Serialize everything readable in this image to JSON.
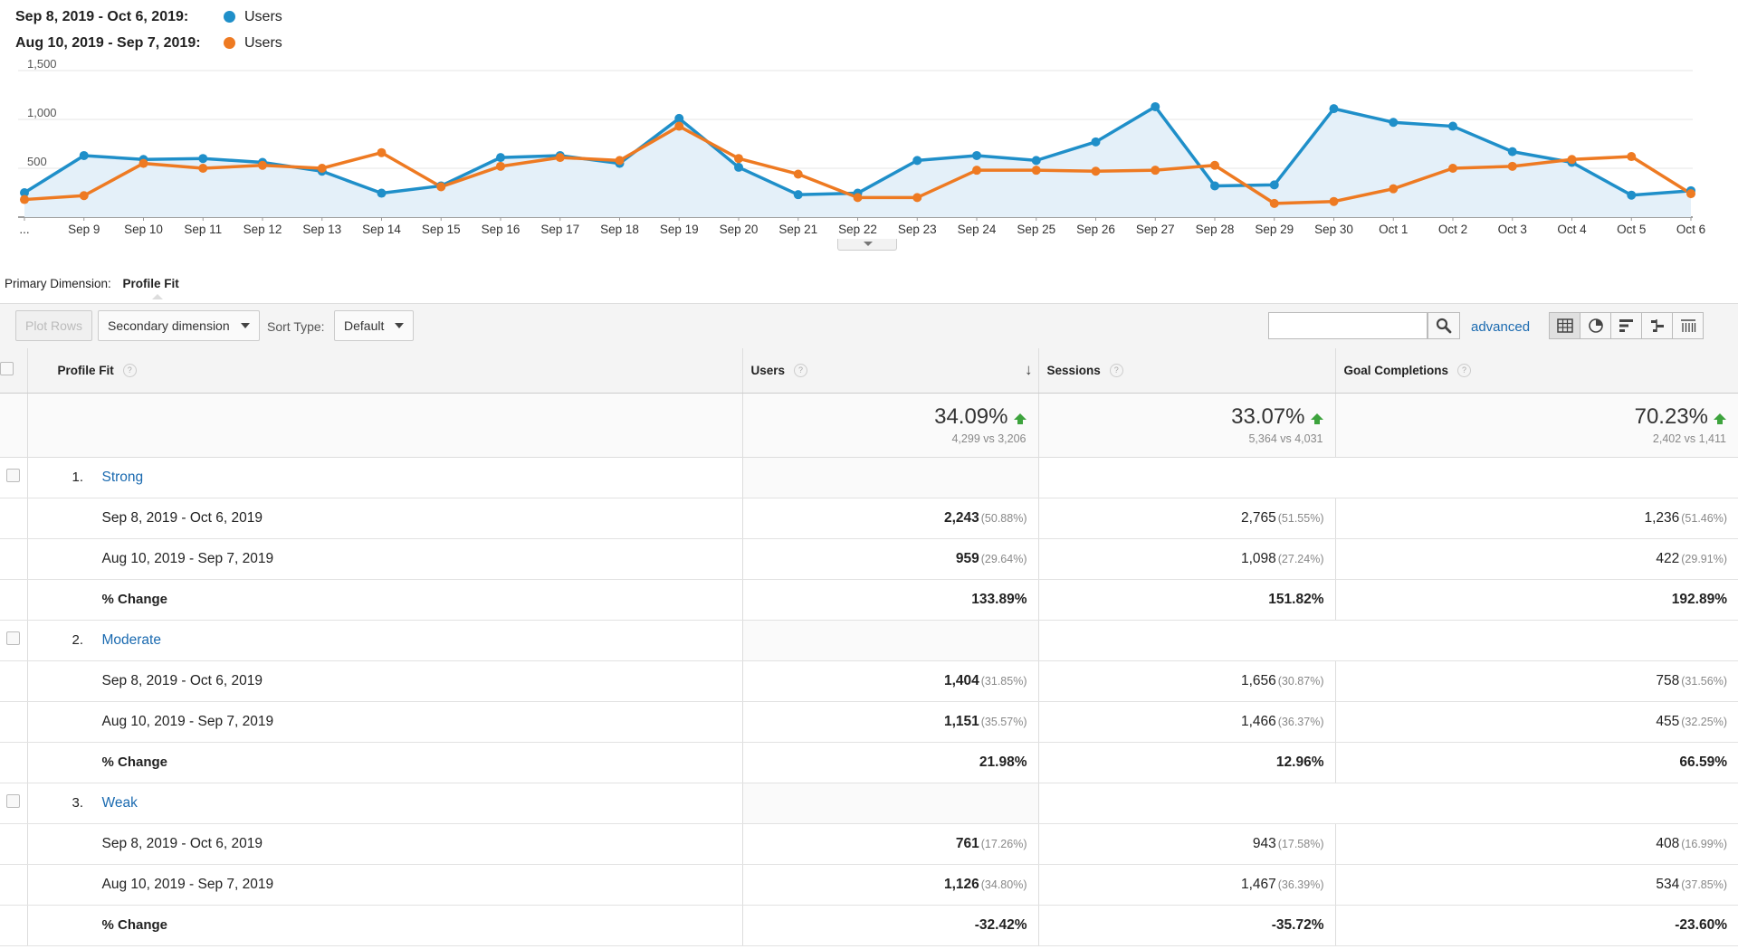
{
  "legend": {
    "rows": [
      {
        "range": "Sep 8, 2019 - Oct 6, 2019:",
        "series": "Users",
        "color": "#1f8fc9"
      },
      {
        "range": "Aug 10, 2019 - Sep 7, 2019:",
        "series": "Users",
        "color": "#ee7a22"
      }
    ]
  },
  "chart_data": {
    "type": "line",
    "x": [
      "...",
      "Sep 9",
      "Sep 10",
      "Sep 11",
      "Sep 12",
      "Sep 13",
      "Sep 14",
      "Sep 15",
      "Sep 16",
      "Sep 17",
      "Sep 18",
      "Sep 19",
      "Sep 20",
      "Sep 21",
      "Sep 22",
      "Sep 23",
      "Sep 24",
      "Sep 25",
      "Sep 26",
      "Sep 27",
      "Sep 28",
      "Sep 29",
      "Sep 30",
      "Oct 1",
      "Oct 2",
      "Oct 3",
      "Oct 4",
      "Oct 5",
      "Oct 6"
    ],
    "yticks": [
      "500",
      "1,000",
      "1,500"
    ],
    "ylim": [
      0,
      1500
    ],
    "series": [
      {
        "name": "Users",
        "range": "Sep 8, 2019 - Oct 6, 2019",
        "color": "#1f8fc9",
        "area": true,
        "values": [
          250,
          630,
          590,
          600,
          560,
          470,
          245,
          320,
          610,
          630,
          550,
          1010,
          510,
          230,
          245,
          580,
          630,
          580,
          770,
          1130,
          320,
          330,
          1110,
          970,
          930,
          670,
          560,
          225,
          270
        ]
      },
      {
        "name": "Users",
        "range": "Aug 10, 2019 - Sep 7, 2019",
        "color": "#ee7a22",
        "area": false,
        "values": [
          180,
          220,
          550,
          500,
          530,
          500,
          660,
          310,
          520,
          610,
          580,
          930,
          600,
          440,
          200,
          200,
          480,
          480,
          470,
          480,
          530,
          140,
          160,
          290,
          500,
          520,
          590,
          620,
          240
        ]
      }
    ],
    "grid": true,
    "legend": "top-left"
  },
  "primary_dimension": {
    "label": "Primary Dimension:",
    "value": "Profile Fit"
  },
  "toolbar": {
    "plot_rows": "Plot Rows",
    "secondary_dimension": "Secondary dimension",
    "sort_type_label": "Sort Type:",
    "sort_type_value": "Default",
    "search_value": "",
    "advanced": "advanced"
  },
  "columns": {
    "dimension": "Profile Fit",
    "users": "Users",
    "sessions": "Sessions",
    "goals": "Goal Completions"
  },
  "totals": {
    "users": {
      "pct": "34.09%",
      "sub": "4,299 vs 3,206"
    },
    "sessions": {
      "pct": "33.07%",
      "sub": "5,364 vs 4,031"
    },
    "goals": {
      "pct": "70.23%",
      "sub": "2,402 vs 1,411"
    }
  },
  "groups": [
    {
      "num": "1.",
      "label": "Strong",
      "rows": [
        {
          "label": "Sep 8, 2019 - Oct 6, 2019",
          "users": "2,243",
          "users_pct": "(50.88%)",
          "sessions": "2,765",
          "sessions_pct": "(51.55%)",
          "goals": "1,236",
          "goals_pct": "(51.46%)"
        },
        {
          "label": "Aug 10, 2019 - Sep 7, 2019",
          "users": "959",
          "users_pct": "(29.64%)",
          "sessions": "1,098",
          "sessions_pct": "(27.24%)",
          "goals": "422",
          "goals_pct": "(29.91%)"
        }
      ],
      "change": {
        "label": "% Change",
        "users": "133.89%",
        "sessions": "151.82%",
        "goals": "192.89%"
      }
    },
    {
      "num": "2.",
      "label": "Moderate",
      "rows": [
        {
          "label": "Sep 8, 2019 - Oct 6, 2019",
          "users": "1,404",
          "users_pct": "(31.85%)",
          "sessions": "1,656",
          "sessions_pct": "(30.87%)",
          "goals": "758",
          "goals_pct": "(31.56%)"
        },
        {
          "label": "Aug 10, 2019 - Sep 7, 2019",
          "users": "1,151",
          "users_pct": "(35.57%)",
          "sessions": "1,466",
          "sessions_pct": "(36.37%)",
          "goals": "455",
          "goals_pct": "(32.25%)"
        }
      ],
      "change": {
        "label": "% Change",
        "users": "21.98%",
        "sessions": "12.96%",
        "goals": "66.59%"
      }
    },
    {
      "num": "3.",
      "label": "Weak",
      "rows": [
        {
          "label": "Sep 8, 2019 - Oct 6, 2019",
          "users": "761",
          "users_pct": "(17.26%)",
          "sessions": "943",
          "sessions_pct": "(17.58%)",
          "goals": "408",
          "goals_pct": "(16.99%)"
        },
        {
          "label": "Aug 10, 2019 - Sep 7, 2019",
          "users": "1,126",
          "users_pct": "(34.80%)",
          "sessions": "1,467",
          "sessions_pct": "(36.39%)",
          "goals": "534",
          "goals_pct": "(37.85%)"
        }
      ],
      "change": {
        "label": "% Change",
        "users": "-32.42%",
        "sessions": "-35.72%",
        "goals": "-23.60%"
      }
    }
  ],
  "icons": {
    "help": "help-circle-icon",
    "sort": "arrow-down-icon",
    "search": "search-icon",
    "trend_up": "arrow-up-icon",
    "views": [
      "table-view-icon",
      "pie-view-icon",
      "bar-view-icon",
      "comparison-view-icon",
      "pivot-view-icon"
    ]
  }
}
